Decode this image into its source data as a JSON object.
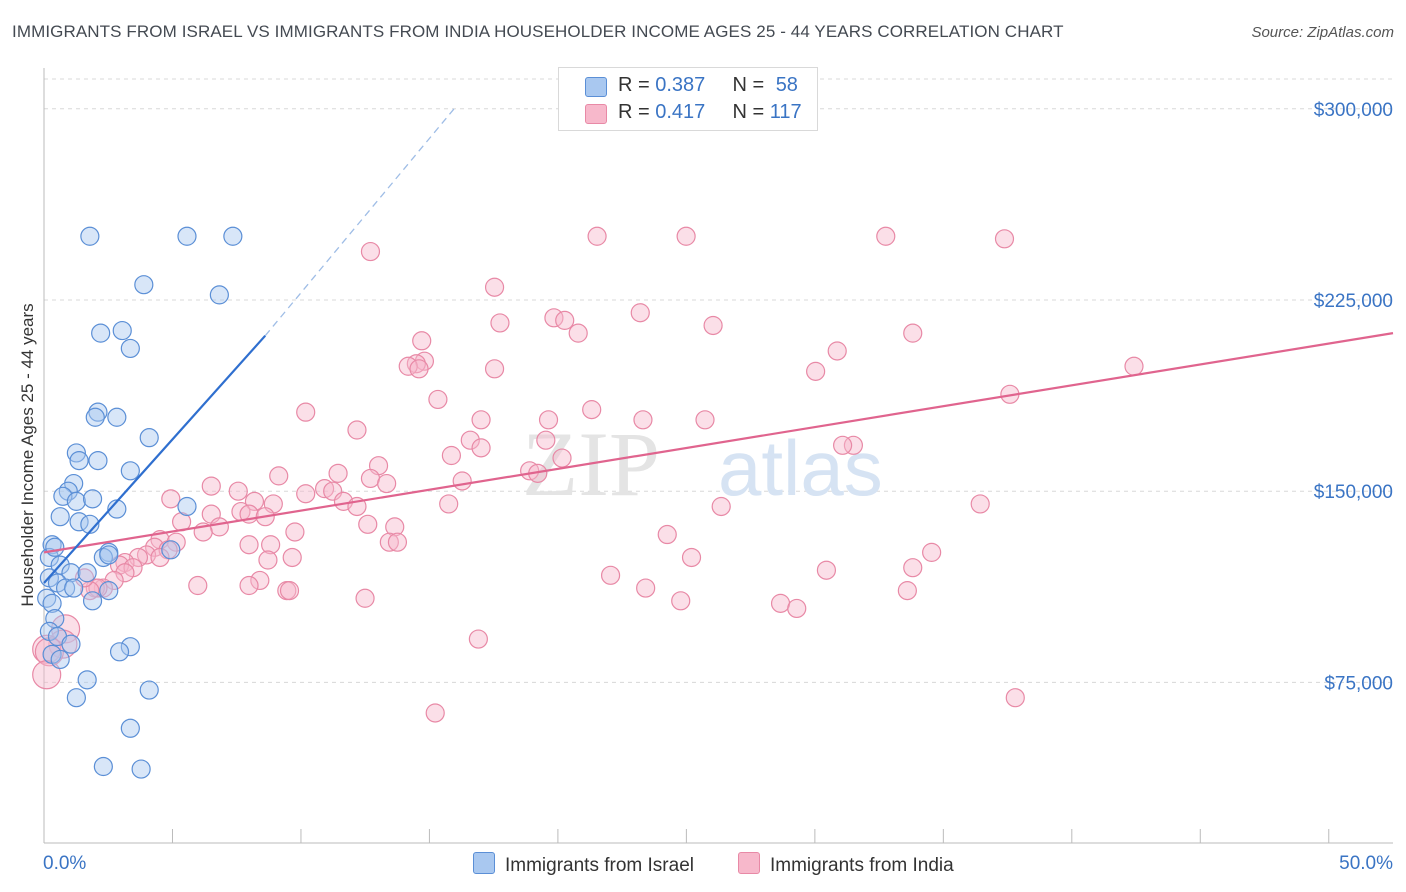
{
  "title": "IMMIGRANTS FROM ISRAEL VS IMMIGRANTS FROM INDIA HOUSEHOLDER INCOME AGES 25 - 44 YEARS CORRELATION CHART",
  "source": "Source: ZipAtlas.com",
  "watermark": {
    "zip": "ZIP",
    "atlas": "atlas"
  },
  "legend": {
    "israel": {
      "r_label": "R =",
      "r_value": "0.387",
      "n_label": "N =",
      "n_value": "58"
    },
    "india": {
      "r_label": "R =",
      "r_value": "0.417",
      "n_label": "N =",
      "n_value": "117"
    }
  },
  "bottom_legend": {
    "israel": "Immigrants from Israel",
    "india": "Immigrants from India"
  },
  "colors": {
    "israel_fill": "#a9c8f0",
    "israel_stroke": "#5b8fd6",
    "israel_line": "#2f6fcf",
    "india_fill": "#f7b8cb",
    "india_stroke": "#e889a6",
    "india_line": "#e0648e",
    "tick_text": "#3a74c4",
    "grid": "#d8d8d8"
  },
  "chart_data": {
    "type": "scatter",
    "title": "IMMIGRANTS FROM ISRAEL VS IMMIGRANTS FROM INDIA HOUSEHOLDER INCOME AGES 25 - 44 YEARS CORRELATION CHART",
    "xlabel": "",
    "ylabel": "Householder Income Ages 25 - 44 years",
    "xlim": [
      0,
      50
    ],
    "ylim": [
      12000,
      316000
    ],
    "x_tick_labels": [
      "0.0%",
      "50.0%"
    ],
    "y_ticks": [
      75000,
      150000,
      225000,
      300000
    ],
    "y_tick_labels": [
      "$75,000",
      "$150,000",
      "$225,000",
      "$300,000"
    ],
    "series": [
      {
        "name": "Immigrants from Israel",
        "points": [
          [
            1.7,
            250000
          ],
          [
            5.3,
            250000
          ],
          [
            7.0,
            250000
          ],
          [
            3.7,
            231000
          ],
          [
            6.5,
            227000
          ],
          [
            2.1,
            212000
          ],
          [
            2.9,
            213000
          ],
          [
            3.2,
            206000
          ],
          [
            2.0,
            181000
          ],
          [
            1.9,
            179000
          ],
          [
            2.7,
            179000
          ],
          [
            3.9,
            171000
          ],
          [
            1.2,
            165000
          ],
          [
            1.3,
            162000
          ],
          [
            2.0,
            162000
          ],
          [
            3.2,
            158000
          ],
          [
            1.1,
            153000
          ],
          [
            0.9,
            150000
          ],
          [
            0.7,
            148000
          ],
          [
            1.2,
            146000
          ],
          [
            1.8,
            147000
          ],
          [
            5.3,
            144000
          ],
          [
            2.7,
            143000
          ],
          [
            0.6,
            140000
          ],
          [
            1.3,
            138000
          ],
          [
            1.7,
            137000
          ],
          [
            0.3,
            129000
          ],
          [
            2.4,
            126000
          ],
          [
            4.7,
            127000
          ],
          [
            0.2,
            124000
          ],
          [
            2.2,
            124000
          ],
          [
            2.4,
            125000
          ],
          [
            0.6,
            121000
          ],
          [
            1.0,
            118000
          ],
          [
            1.6,
            118000
          ],
          [
            0.2,
            116000
          ],
          [
            0.5,
            114000
          ],
          [
            0.8,
            112000
          ],
          [
            1.1,
            112000
          ],
          [
            2.4,
            111000
          ],
          [
            1.8,
            107000
          ],
          [
            0.1,
            108000
          ],
          [
            0.3,
            106000
          ],
          [
            0.4,
            100000
          ],
          [
            0.2,
            95000
          ],
          [
            0.5,
            93000
          ],
          [
            1.0,
            90000
          ],
          [
            3.2,
            89000
          ],
          [
            2.8,
            87000
          ],
          [
            0.3,
            86000
          ],
          [
            1.6,
            76000
          ],
          [
            3.9,
            72000
          ],
          [
            1.2,
            69000
          ],
          [
            3.2,
            57000
          ],
          [
            2.2,
            42000
          ],
          [
            3.6,
            41000
          ],
          [
            0.6,
            84000
          ],
          [
            0.4,
            128000
          ]
        ]
      },
      {
        "name": "Immigrants from India",
        "points": [
          [
            20.5,
            250000
          ],
          [
            23.8,
            250000
          ],
          [
            31.2,
            250000
          ],
          [
            35.6,
            249000
          ],
          [
            12.1,
            244000
          ],
          [
            16.7,
            230000
          ],
          [
            22.1,
            220000
          ],
          [
            18.9,
            218000
          ],
          [
            19.3,
            217000
          ],
          [
            16.9,
            216000
          ],
          [
            24.8,
            215000
          ],
          [
            32.2,
            212000
          ],
          [
            19.8,
            212000
          ],
          [
            14.0,
            209000
          ],
          [
            29.4,
            205000
          ],
          [
            14.1,
            201000
          ],
          [
            13.8,
            200000
          ],
          [
            13.5,
            199000
          ],
          [
            13.9,
            198000
          ],
          [
            16.7,
            198000
          ],
          [
            28.6,
            197000
          ],
          [
            40.4,
            199000
          ],
          [
            35.8,
            188000
          ],
          [
            14.6,
            186000
          ],
          [
            20.3,
            182000
          ],
          [
            9.7,
            181000
          ],
          [
            16.2,
            178000
          ],
          [
            18.7,
            178000
          ],
          [
            22.2,
            178000
          ],
          [
            24.5,
            178000
          ],
          [
            11.6,
            174000
          ],
          [
            15.8,
            170000
          ],
          [
            18.6,
            170000
          ],
          [
            30.0,
            168000
          ],
          [
            29.6,
            168000
          ],
          [
            16.2,
            167000
          ],
          [
            15.1,
            164000
          ],
          [
            19.2,
            163000
          ],
          [
            12.4,
            160000
          ],
          [
            18.0,
            158000
          ],
          [
            18.3,
            157000
          ],
          [
            10.9,
            157000
          ],
          [
            8.7,
            156000
          ],
          [
            12.1,
            155000
          ],
          [
            15.5,
            154000
          ],
          [
            12.7,
            153000
          ],
          [
            6.2,
            152000
          ],
          [
            10.4,
            151000
          ],
          [
            7.2,
            150000
          ],
          [
            10.7,
            150000
          ],
          [
            9.7,
            149000
          ],
          [
            4.7,
            147000
          ],
          [
            11.1,
            146000
          ],
          [
            7.8,
            146000
          ],
          [
            15.0,
            145000
          ],
          [
            8.5,
            145000
          ],
          [
            11.6,
            144000
          ],
          [
            25.1,
            144000
          ],
          [
            34.7,
            145000
          ],
          [
            7.3,
            142000
          ],
          [
            7.6,
            141000
          ],
          [
            6.2,
            141000
          ],
          [
            8.2,
            140000
          ],
          [
            5.1,
            138000
          ],
          [
            12.0,
            137000
          ],
          [
            13.0,
            136000
          ],
          [
            6.5,
            136000
          ],
          [
            9.3,
            134000
          ],
          [
            5.9,
            134000
          ],
          [
            23.1,
            133000
          ],
          [
            4.3,
            131000
          ],
          [
            12.8,
            130000
          ],
          [
            13.1,
            130000
          ],
          [
            4.9,
            130000
          ],
          [
            7.6,
            129000
          ],
          [
            8.4,
            129000
          ],
          [
            4.1,
            128000
          ],
          [
            4.6,
            127000
          ],
          [
            32.9,
            126000
          ],
          [
            3.8,
            125000
          ],
          [
            3.5,
            124000
          ],
          [
            9.2,
            124000
          ],
          [
            4.3,
            124000
          ],
          [
            8.3,
            123000
          ],
          [
            3.0,
            122000
          ],
          [
            24.0,
            124000
          ],
          [
            2.8,
            121000
          ],
          [
            3.3,
            120000
          ],
          [
            32.2,
            120000
          ],
          [
            29.0,
            119000
          ],
          [
            3.0,
            118000
          ],
          [
            21.0,
            117000
          ],
          [
            2.6,
            115000
          ],
          [
            8.0,
            115000
          ],
          [
            7.6,
            113000
          ],
          [
            5.7,
            113000
          ],
          [
            2.2,
            112000
          ],
          [
            22.3,
            112000
          ],
          [
            9.0,
            111000
          ],
          [
            32.0,
            111000
          ],
          [
            1.9,
            112000
          ],
          [
            2.0,
            112000
          ],
          [
            9.1,
            111000
          ],
          [
            1.7,
            111000
          ],
          [
            11.9,
            108000
          ],
          [
            23.6,
            107000
          ],
          [
            27.3,
            106000
          ],
          [
            27.9,
            104000
          ],
          [
            0.8,
            96000
          ],
          [
            16.1,
            92000
          ],
          [
            0.7,
            90000
          ],
          [
            0.1,
            88000
          ],
          [
            0.2,
            87000
          ],
          [
            0.1,
            78000
          ],
          [
            36.0,
            69000
          ],
          [
            14.5,
            63000
          ],
          [
            1.5,
            116000
          ]
        ]
      }
    ],
    "trend_lines": [
      {
        "series": "Immigrants from Israel",
        "x": [
          0,
          8.2
        ],
        "y": [
          114000,
          211000
        ],
        "dashed_extension_to": [
          15.2,
          300000
        ]
      },
      {
        "series": "Immigrants from India",
        "x": [
          0,
          50
        ],
        "y": [
          126000,
          212000
        ]
      }
    ]
  }
}
